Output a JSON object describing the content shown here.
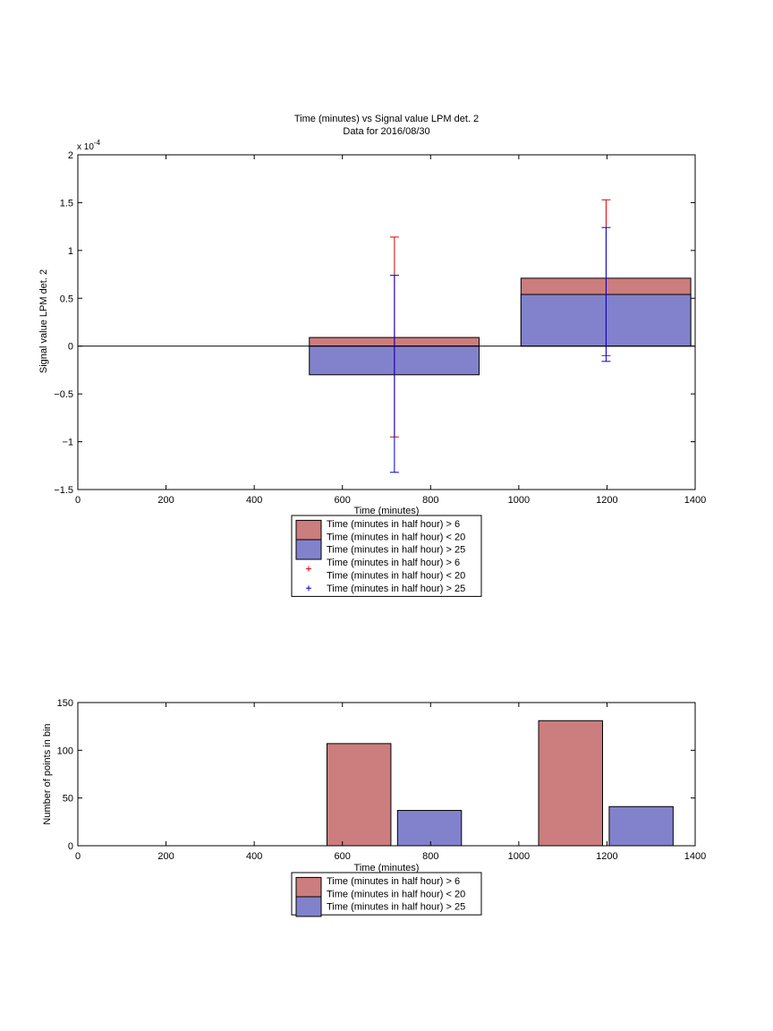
{
  "chart_data": [
    {
      "type": "bar",
      "title": "Time (minutes) vs Signal value LPM det. 2",
      "subtitle": "Data for 2016/08/30",
      "xlabel": "Time (minutes)",
      "ylabel": "Signal value LPM det. 2",
      "y_exponent_label": "x 10",
      "y_exponent_power": "-4",
      "xlim": [
        0,
        1400
      ],
      "ylim": [
        -1.5,
        2
      ],
      "xticks": [
        0,
        200,
        400,
        600,
        800,
        1000,
        1200,
        1400
      ],
      "xtick_labels": [
        "0",
        "200",
        "400",
        "600",
        "800",
        "1000",
        "1200",
        "1400"
      ],
      "yticks": [
        -1.5,
        -1,
        -0.5,
        0,
        0.5,
        1,
        1.5,
        2
      ],
      "ytick_labels": [
        "−1.5",
        "−1",
        "−0.5",
        "0",
        "0.5",
        "1",
        "1.5",
        "2"
      ],
      "grid": false,
      "legend_placement": "below",
      "zero_line": true,
      "series": [
        {
          "color": "#cc7d7d",
          "errorbar_color": "#dd0000",
          "bars": [
            {
              "x_start": 525,
              "x_end": 910,
              "value": 0.09
            },
            {
              "x_start": 1005,
              "x_end": 1390,
              "value": 0.71
            }
          ],
          "errorbars": [
            {
              "x": 718,
              "lower": -0.95,
              "upper": 1.14
            },
            {
              "x": 1198,
              "lower": -0.1,
              "upper": 1.53
            }
          ]
        },
        {
          "color": "#8282cc",
          "errorbar_color": "#0000cc",
          "bars": [
            {
              "x_start": 525,
              "x_end": 910,
              "value": -0.3
            },
            {
              "x_start": 1005,
              "x_end": 1390,
              "value": 0.54
            }
          ],
          "errorbars": [
            {
              "x": 718,
              "lower": -1.32,
              "upper": 0.74
            },
            {
              "x": 1198,
              "lower": -0.16,
              "upper": 1.24
            }
          ]
        }
      ],
      "legend": [
        {
          "kind": "patch",
          "color": "#cc7d7d",
          "lines": [
            "Time (minutes in half hour) > 6",
            "Time (minutes in half hour) < 20"
          ]
        },
        {
          "kind": "patch",
          "color": "#8282cc",
          "lines": [
            "Time (minutes in half hour) > 25"
          ]
        },
        {
          "kind": "marker",
          "color": "#dd0000",
          "lines": [
            "Time (minutes in half hour) > 6",
            "Time (minutes in half hour) < 20"
          ]
        },
        {
          "kind": "marker",
          "color": "#0000cc",
          "lines": [
            "Time (minutes in half hour) > 25"
          ]
        }
      ]
    },
    {
      "type": "bar",
      "xlabel": "Time (minutes)",
      "ylabel": "Number of points in bin",
      "xlim": [
        0,
        1400
      ],
      "ylim": [
        0,
        150
      ],
      "xticks": [
        0,
        200,
        400,
        600,
        800,
        1000,
        1200,
        1400
      ],
      "xtick_labels": [
        "0",
        "200",
        "400",
        "600",
        "800",
        "1000",
        "1200",
        "1400"
      ],
      "yticks": [
        0,
        50,
        100,
        150
      ],
      "ytick_labels": [
        "0",
        "50",
        "100",
        "150"
      ],
      "grid": false,
      "legend_placement": "below",
      "series": [
        {
          "color": "#cc7d7d",
          "bars": [
            {
              "x_start": 565,
              "x_end": 710,
              "value": 107
            },
            {
              "x_start": 1045,
              "x_end": 1190,
              "value": 131
            }
          ]
        },
        {
          "color": "#8282cc",
          "bars": [
            {
              "x_start": 725,
              "x_end": 870,
              "value": 37
            },
            {
              "x_start": 1205,
              "x_end": 1350,
              "value": 41
            }
          ]
        }
      ],
      "legend": [
        {
          "kind": "patch",
          "color": "#cc7d7d",
          "lines": [
            "Time (minutes in half hour) > 6",
            "Time (minutes in half hour) < 20"
          ]
        },
        {
          "kind": "patch",
          "color": "#8282cc",
          "lines": [
            "Time (minutes in half hour) > 25"
          ]
        }
      ]
    }
  ]
}
